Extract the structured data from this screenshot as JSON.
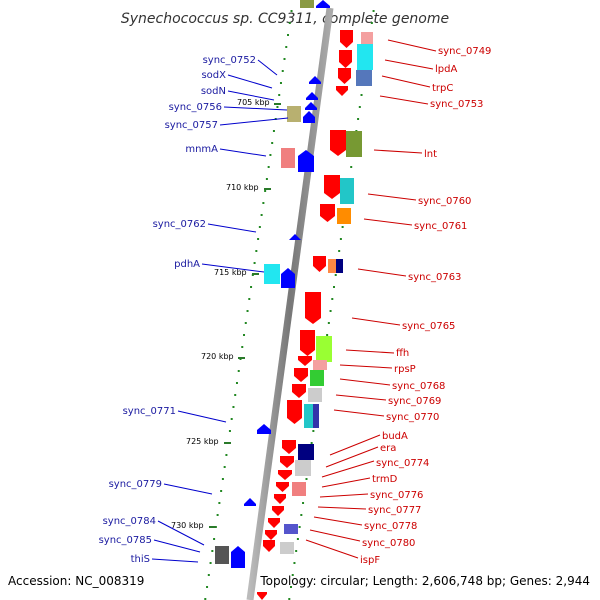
{
  "title": "Synechococcus sp. CC9311, complete genome",
  "footer": {
    "accession": "Accession: NC_008319",
    "topology": "Topology: circular; Length: 2,606,748 bp; Genes: 2,944"
  },
  "kbp_ticks": [
    "705 kbp",
    "710 kbp",
    "715 kbp",
    "720 kbp",
    "725 kbp",
    "730 kbp"
  ],
  "labels_left": [
    "sync_0752",
    "sodX",
    "sodN",
    "sync_0756",
    "sync_0757",
    "mnmA",
    "sync_0762",
    "pdhA",
    "sync_0771",
    "sync_0779",
    "sync_0784",
    "sync_0785",
    "thiS"
  ],
  "labels_right": [
    "sync_0749",
    "lpdA",
    "trpC",
    "sync_0753",
    "lnt",
    "sync_0760",
    "sync_0761",
    "sync_0763",
    "sync_0765",
    "ffh",
    "rpsP",
    "sync_0768",
    "sync_0769",
    "sync_0770",
    "budA",
    "era",
    "sync_0774",
    "trmD",
    "sync_0776",
    "sync_0777",
    "sync_0778",
    "sync_0780",
    "ispF"
  ],
  "colors": {
    "forward_strand": "#ff0000",
    "reverse_strand": "#0000ff",
    "backbone": "#999999",
    "left_label": "#1a1aa0",
    "right_label": "#cc0000",
    "tick_dot": "#228822"
  }
}
